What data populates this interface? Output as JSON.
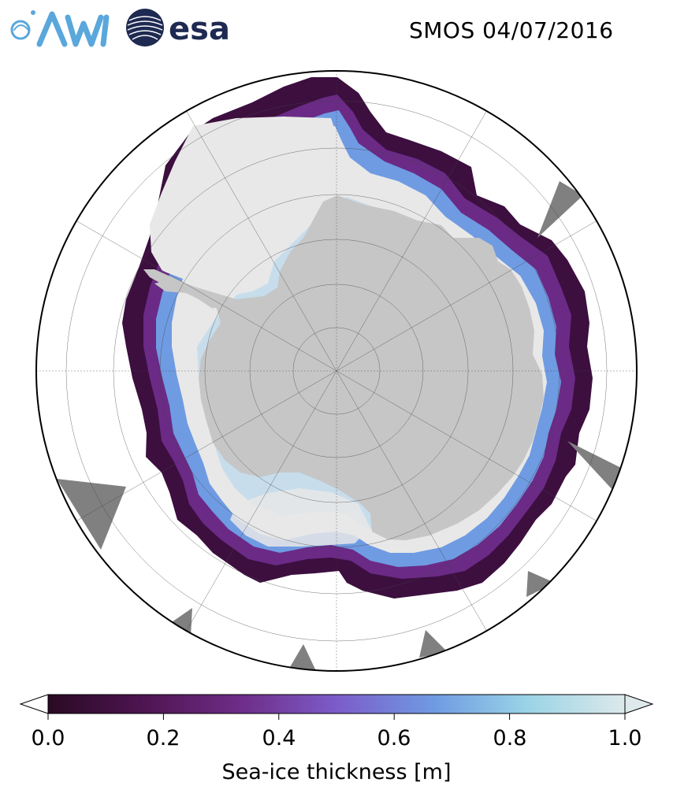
{
  "header": {
    "title": "SMOS 04/07/2016",
    "logos": [
      {
        "name": "awi-logo",
        "text": "AWI",
        "color": "#5aa7dc"
      },
      {
        "name": "esa-logo",
        "text": "esa",
        "color": "#1f2a52"
      }
    ]
  },
  "map": {
    "projection": "south-polar-stereographic",
    "graticule": "grid",
    "land_color": "#c6c6c6",
    "missing_data_color": "#808080",
    "ice_high_color": "#e8e8e8"
  },
  "colorbar": {
    "label": "Sea-ice thickness [m]",
    "ticks": [
      "0.0",
      "0.2",
      "0.4",
      "0.6",
      "0.8",
      "1.0"
    ],
    "range": [
      0.0,
      1.0
    ],
    "extend": "both",
    "colormap": [
      "#2a0a24",
      "#4e1552",
      "#6e2c86",
      "#7c5cc9",
      "#6f9be2",
      "#9ad3e6",
      "#dde9ea"
    ]
  }
}
